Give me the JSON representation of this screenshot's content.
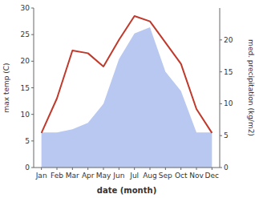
{
  "chart_data": {
    "type": "line",
    "x_label": "date (month)",
    "y_label": "max temp (C)",
    "y2_label": "med. precipitation (kg/m2)",
    "categories": [
      "Jan",
      "Feb",
      "Mar",
      "Apr",
      "May",
      "Jun",
      "Jul",
      "Aug",
      "Sep",
      "Oct",
      "Nov",
      "Dec"
    ],
    "series": [
      {
        "type": "area",
        "axis": "y2",
        "color": "#b8c8f0",
        "values": [
          5.5,
          5.5,
          6.0,
          7.0,
          10.0,
          17.0,
          21.0,
          22.0,
          15.0,
          12.0,
          5.5,
          5.5
        ]
      },
      {
        "type": "line",
        "color": "#c0392b",
        "values": [
          6.5,
          13.0,
          22.0,
          21.5,
          19.0,
          24.0,
          28.5,
          27.5,
          23.5,
          19.5,
          11.0,
          6.5
        ]
      }
    ],
    "ylim": [
      0,
      30
    ],
    "yticks": [
      0,
      5,
      10,
      15,
      20,
      25,
      30
    ],
    "y2lim": [
      0,
      25
    ],
    "y2ticks": [
      0,
      5,
      10,
      15,
      20
    ]
  }
}
